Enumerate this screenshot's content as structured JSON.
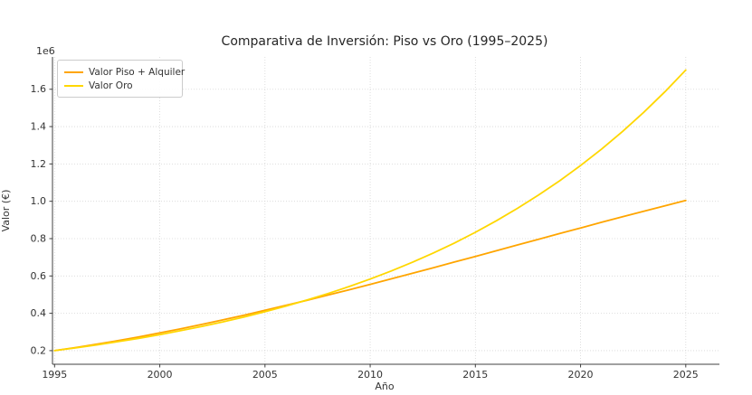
{
  "figure": {
    "background": "#ffffff"
  },
  "legend": {
    "position": "upper left",
    "items": [
      {
        "label": "Valor Piso + Alquiler",
        "color": "#FFA500"
      },
      {
        "label": "Valor Oro",
        "color": "#FFD700"
      }
    ]
  },
  "chart_data": {
    "type": "line",
    "title": "Comparativa de Inversión: Piso vs Oro (1995–2025)",
    "xlabel": "Año",
    "ylabel": "Valor (€)",
    "y_offset_text": "1e6",
    "grid": true,
    "legend_position": "upper left",
    "xlim": [
      1994.9,
      2026.6
    ],
    "ylim": [
      127000,
      1773000
    ],
    "xtick_values": [
      1995,
      2000,
      2005,
      2010,
      2015,
      2020,
      2025
    ],
    "xtick_labels": [
      "1995",
      "2000",
      "2005",
      "2010",
      "2015",
      "2020",
      "2025"
    ],
    "ytick_values": [
      200000,
      400000,
      600000,
      800000,
      1000000,
      1200000,
      1400000,
      1600000
    ],
    "ytick_labels": [
      "0.2",
      "0.4",
      "0.6",
      "0.8",
      "1.0",
      "1.2",
      "1.4",
      "1.6"
    ],
    "x": [
      1995,
      1996,
      1997,
      1998,
      1999,
      2000,
      2001,
      2002,
      2003,
      2004,
      2005,
      2006,
      2007,
      2008,
      2009,
      2010,
      2011,
      2012,
      2013,
      2014,
      2015,
      2016,
      2017,
      2018,
      2019,
      2020,
      2021,
      2022,
      2023,
      2024,
      2025
    ],
    "series": [
      {
        "name": "Valor Piso + Alquiler",
        "color": "#FFA500",
        "values": [
          200000,
          216600,
          234400,
          253500,
          273700,
          295000,
          317400,
          340700,
          364900,
          390000,
          415900,
          442500,
          469800,
          497700,
          526100,
          555000,
          584300,
          614000,
          644000,
          674300,
          704700,
          735200,
          765800,
          796400,
          826900,
          857200,
          887400,
          917200,
          946700,
          975800,
          1004400
        ]
      },
      {
        "name": "Valor Oro",
        "color": "#FFD700",
        "values": [
          200000,
          214800,
          230700,
          247800,
          266100,
          285800,
          306900,
          329700,
          354100,
          380200,
          408400,
          438600,
          471100,
          505900,
          543400,
          583600,
          626800,
          673100,
          722900,
          776400,
          833900,
          895600,
          961900,
          1033100,
          1109500,
          1191600,
          1279800,
          1374500,
          1476200,
          1585500,
          1702800
        ]
      }
    ]
  }
}
